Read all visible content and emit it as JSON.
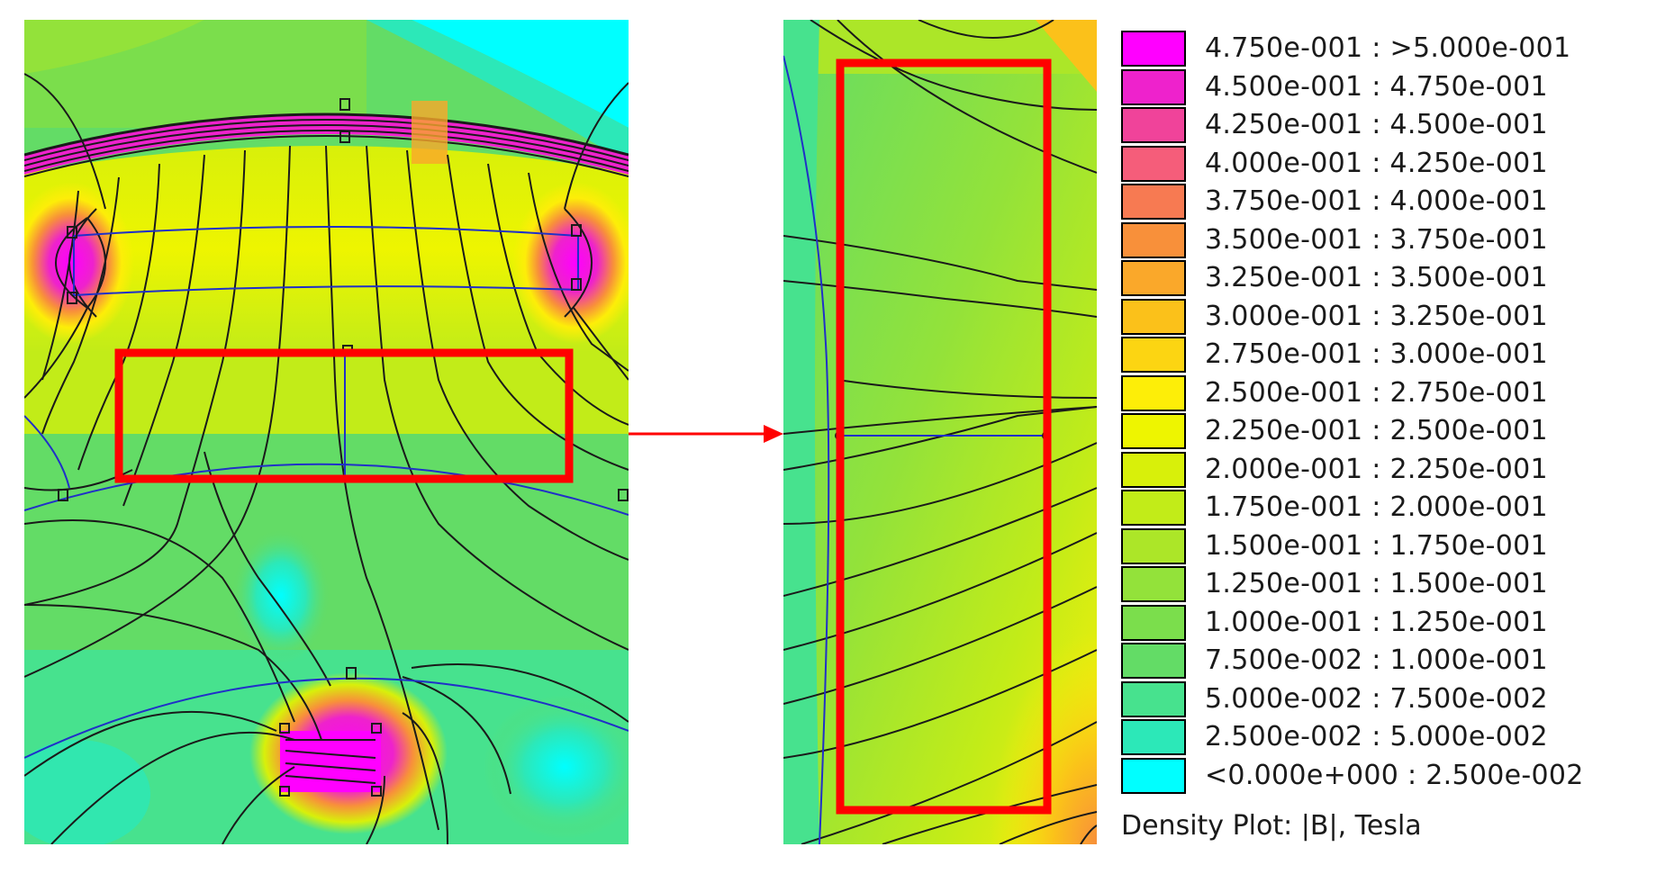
{
  "legend": {
    "title": "Density Plot: |B|, Tesla",
    "entries": [
      {
        "label": "4.750e-001 : >5.000e-001",
        "color": "#ff00ff"
      },
      {
        "label": "4.500e-001 : 4.750e-001",
        "color": "#ee22cc"
      },
      {
        "label": "4.250e-001 : 4.500e-001",
        "color": "#f0439a"
      },
      {
        "label": "4.000e-001 : 4.250e-001",
        "color": "#f55d7a"
      },
      {
        "label": "3.750e-001 : 4.000e-001",
        "color": "#f77a52"
      },
      {
        "label": "3.500e-001 : 3.750e-001",
        "color": "#f8903a"
      },
      {
        "label": "3.250e-001 : 3.500e-001",
        "color": "#faa82a"
      },
      {
        "label": "3.000e-001 : 3.250e-001",
        "color": "#fbc11a"
      },
      {
        "label": "2.750e-001 : 3.000e-001",
        "color": "#fcd512"
      },
      {
        "label": "2.500e-001 : 2.750e-001",
        "color": "#fdee08"
      },
      {
        "label": "2.250e-001 : 2.500e-001",
        "color": "#eef500"
      },
      {
        "label": "2.000e-001 : 2.250e-001",
        "color": "#d8f00a"
      },
      {
        "label": "1.750e-001 : 2.000e-001",
        "color": "#c2ec18"
      },
      {
        "label": "1.500e-001 : 1.750e-001",
        "color": "#ace628"
      },
      {
        "label": "1.250e-001 : 1.500e-001",
        "color": "#93e23a"
      },
      {
        "label": "1.000e-001 : 1.250e-001",
        "color": "#7bde4c"
      },
      {
        "label": "7.500e-002 : 1.000e-001",
        "color": "#63dc66"
      },
      {
        "label": "5.000e-002 : 7.500e-002",
        "color": "#47e28e"
      },
      {
        "label": "2.500e-002 : 5.000e-002",
        "color": "#2ce8b8"
      },
      {
        "label": "<0.000e+000 : 2.500e-002",
        "color": "#00ffff"
      }
    ]
  },
  "colors": {
    "highlight": "#ff0000",
    "contour": "#1a1a1a",
    "boundary": "#2030c8"
  }
}
